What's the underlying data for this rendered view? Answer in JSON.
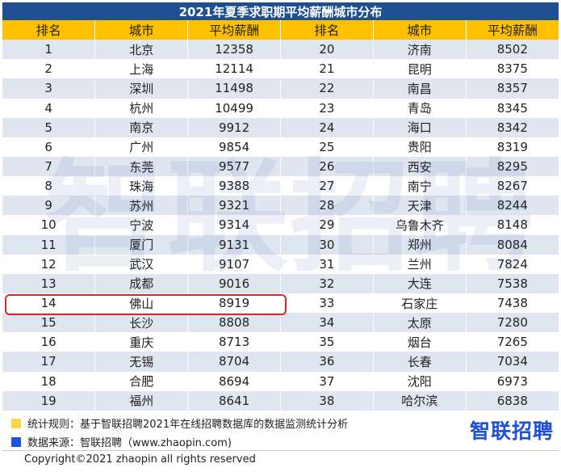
{
  "title": "2021年夏季求职期平均薪酬城市分布",
  "headers": [
    "排名",
    "城市",
    "平均薪酬",
    "排名",
    "城市",
    "平均薪酬"
  ],
  "rows": [
    [
      "1",
      "北京",
      "12358",
      "20",
      "济南",
      "8502"
    ],
    [
      "2",
      "上海",
      "12114",
      "21",
      "昆明",
      "8375"
    ],
    [
      "3",
      "深圳",
      "11498",
      "22",
      "南昌",
      "8357"
    ],
    [
      "4",
      "杭州",
      "10499",
      "23",
      "青岛",
      "8345"
    ],
    [
      "5",
      "南京",
      "9912",
      "24",
      "海口",
      "8342"
    ],
    [
      "6",
      "广州",
      "9854",
      "25",
      "贵阳",
      "8319"
    ],
    [
      "7",
      "东莞",
      "9577",
      "26",
      "西安",
      "8295"
    ],
    [
      "8",
      "珠海",
      "9388",
      "27",
      "南宁",
      "8267"
    ],
    [
      "9",
      "苏州",
      "9321",
      "28",
      "天津",
      "8244"
    ],
    [
      "10",
      "宁波",
      "9314",
      "29",
      "乌鲁木齐",
      "8148"
    ],
    [
      "11",
      "厦门",
      "9131",
      "30",
      "郑州",
      "8084"
    ],
    [
      "12",
      "武汉",
      "9107",
      "31",
      "兰州",
      "7824"
    ],
    [
      "13",
      "成都",
      "9016",
      "32",
      "大连",
      "7538"
    ],
    [
      "14",
      "佛山",
      "8919",
      "33",
      "石家庄",
      "7438"
    ],
    [
      "15",
      "长沙",
      "8808",
      "34",
      "太原",
      "7280"
    ],
    [
      "16",
      "重庆",
      "8713",
      "35",
      "烟台",
      "7265"
    ],
    [
      "17",
      "无锡",
      "8704",
      "36",
      "长春",
      "7034"
    ],
    [
      "18",
      "合肥",
      "8694",
      "37",
      "沈阳",
      "6973"
    ],
    [
      "19",
      "福州",
      "8641",
      "38",
      "哈尔滨",
      "6838"
    ]
  ],
  "chart_data": {
    "type": "table",
    "title": "2021年夏季求职期平均薪酬城市分布",
    "columns": [
      "排名",
      "城市",
      "平均薪酬"
    ],
    "highlighted_city": "佛山",
    "records": [
      {
        "rank": 1,
        "city": "北京",
        "salary": 12358
      },
      {
        "rank": 2,
        "city": "上海",
        "salary": 12114
      },
      {
        "rank": 3,
        "city": "深圳",
        "salary": 11498
      },
      {
        "rank": 4,
        "city": "杭州",
        "salary": 10499
      },
      {
        "rank": 5,
        "city": "南京",
        "salary": 9912
      },
      {
        "rank": 6,
        "city": "广州",
        "salary": 9854
      },
      {
        "rank": 7,
        "city": "东莞",
        "salary": 9577
      },
      {
        "rank": 8,
        "city": "珠海",
        "salary": 9388
      },
      {
        "rank": 9,
        "city": "苏州",
        "salary": 9321
      },
      {
        "rank": 10,
        "city": "宁波",
        "salary": 9314
      },
      {
        "rank": 11,
        "city": "厦门",
        "salary": 9131
      },
      {
        "rank": 12,
        "city": "武汉",
        "salary": 9107
      },
      {
        "rank": 13,
        "city": "成都",
        "salary": 9016
      },
      {
        "rank": 14,
        "city": "佛山",
        "salary": 8919
      },
      {
        "rank": 15,
        "city": "长沙",
        "salary": 8808
      },
      {
        "rank": 16,
        "city": "重庆",
        "salary": 8713
      },
      {
        "rank": 17,
        "city": "无锡",
        "salary": 8704
      },
      {
        "rank": 18,
        "city": "合肥",
        "salary": 8694
      },
      {
        "rank": 19,
        "city": "福州",
        "salary": 8641
      },
      {
        "rank": 20,
        "city": "济南",
        "salary": 8502
      },
      {
        "rank": 21,
        "city": "昆明",
        "salary": 8375
      },
      {
        "rank": 22,
        "city": "南昌",
        "salary": 8357
      },
      {
        "rank": 23,
        "city": "青岛",
        "salary": 8345
      },
      {
        "rank": 24,
        "city": "海口",
        "salary": 8342
      },
      {
        "rank": 25,
        "city": "贵阳",
        "salary": 8319
      },
      {
        "rank": 26,
        "city": "西安",
        "salary": 8295
      },
      {
        "rank": 27,
        "city": "南宁",
        "salary": 8267
      },
      {
        "rank": 28,
        "city": "天津",
        "salary": 8244
      },
      {
        "rank": 29,
        "city": "乌鲁木齐",
        "salary": 8148
      },
      {
        "rank": 30,
        "city": "郑州",
        "salary": 8084
      },
      {
        "rank": 31,
        "city": "兰州",
        "salary": 7824
      },
      {
        "rank": 32,
        "city": "大连",
        "salary": 7538
      },
      {
        "rank": 33,
        "city": "石家庄",
        "salary": 7438
      },
      {
        "rank": 34,
        "city": "太原",
        "salary": 7280
      },
      {
        "rank": 35,
        "city": "烟台",
        "salary": 7265
      },
      {
        "rank": 36,
        "city": "长春",
        "salary": 7034
      },
      {
        "rank": 37,
        "city": "沈阳",
        "salary": 6973
      },
      {
        "rank": 38,
        "city": "哈尔滨",
        "salary": 6838
      }
    ]
  },
  "watermark": "智联招聘",
  "notes": {
    "rule": "统计规则：基于智联招聘2021年在线招聘数据库的数据监测统计分析",
    "source": "数据来源：智联招聘（www.zhaopin.com)"
  },
  "brand_logo": "智联招聘",
  "copyright": "Copyright©2021 zhaopin all rights reserved",
  "colors": {
    "title_bg": "#1d4f91",
    "header_bg": "#ffc000",
    "stripe_bg": "#dfe6f0",
    "highlight_border": "#e0252a",
    "rule_marker": "#ffd54a",
    "source_marker": "#1c53e6",
    "brand": "#1e4fd8"
  }
}
